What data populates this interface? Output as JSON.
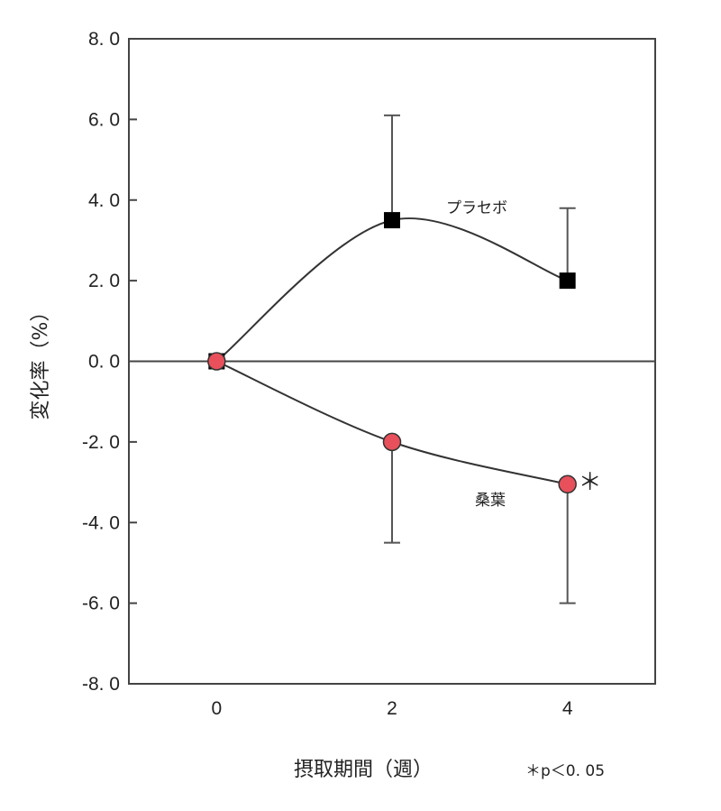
{
  "chart_data": {
    "type": "line",
    "title": "",
    "xlabel": "摂取期間（週）",
    "ylabel": "変化率（%）",
    "xlim": [
      -1,
      5
    ],
    "ylim": [
      -8,
      8
    ],
    "x_ticks": [
      0,
      2,
      4
    ],
    "x_tick_labels": [
      "0",
      "2",
      "4"
    ],
    "y_ticks": [
      8,
      6,
      4,
      2,
      0,
      -2,
      -4,
      -6,
      -8
    ],
    "y_tick_labels": [
      "8. 0",
      "6. 0",
      "4. 0",
      "2. 0",
      "0. 0",
      "-2. 0",
      "-4. 0",
      "-6. 0",
      "-8. 0"
    ],
    "zero_line": true,
    "grid": false,
    "series": [
      {
        "name": "プラセボ",
        "marker": "square",
        "color": "#000000",
        "x": [
          0,
          2,
          4
        ],
        "y": [
          0.0,
          3.5,
          2.0
        ],
        "error_upper": [
          null,
          6.1,
          3.8
        ],
        "error_lower": [
          null,
          null,
          null
        ]
      },
      {
        "name": "桑葉",
        "marker": "circle",
        "color": "#e8505b",
        "x": [
          0,
          2,
          4
        ],
        "y": [
          0.0,
          -2.0,
          -3.05
        ],
        "error_upper": [
          null,
          null,
          null
        ],
        "error_lower": [
          null,
          -4.5,
          -6.0
        ]
      }
    ],
    "significance": {
      "marker": "＊",
      "series": "桑葉",
      "x": 4,
      "note": "＊p＜0. 05"
    }
  }
}
